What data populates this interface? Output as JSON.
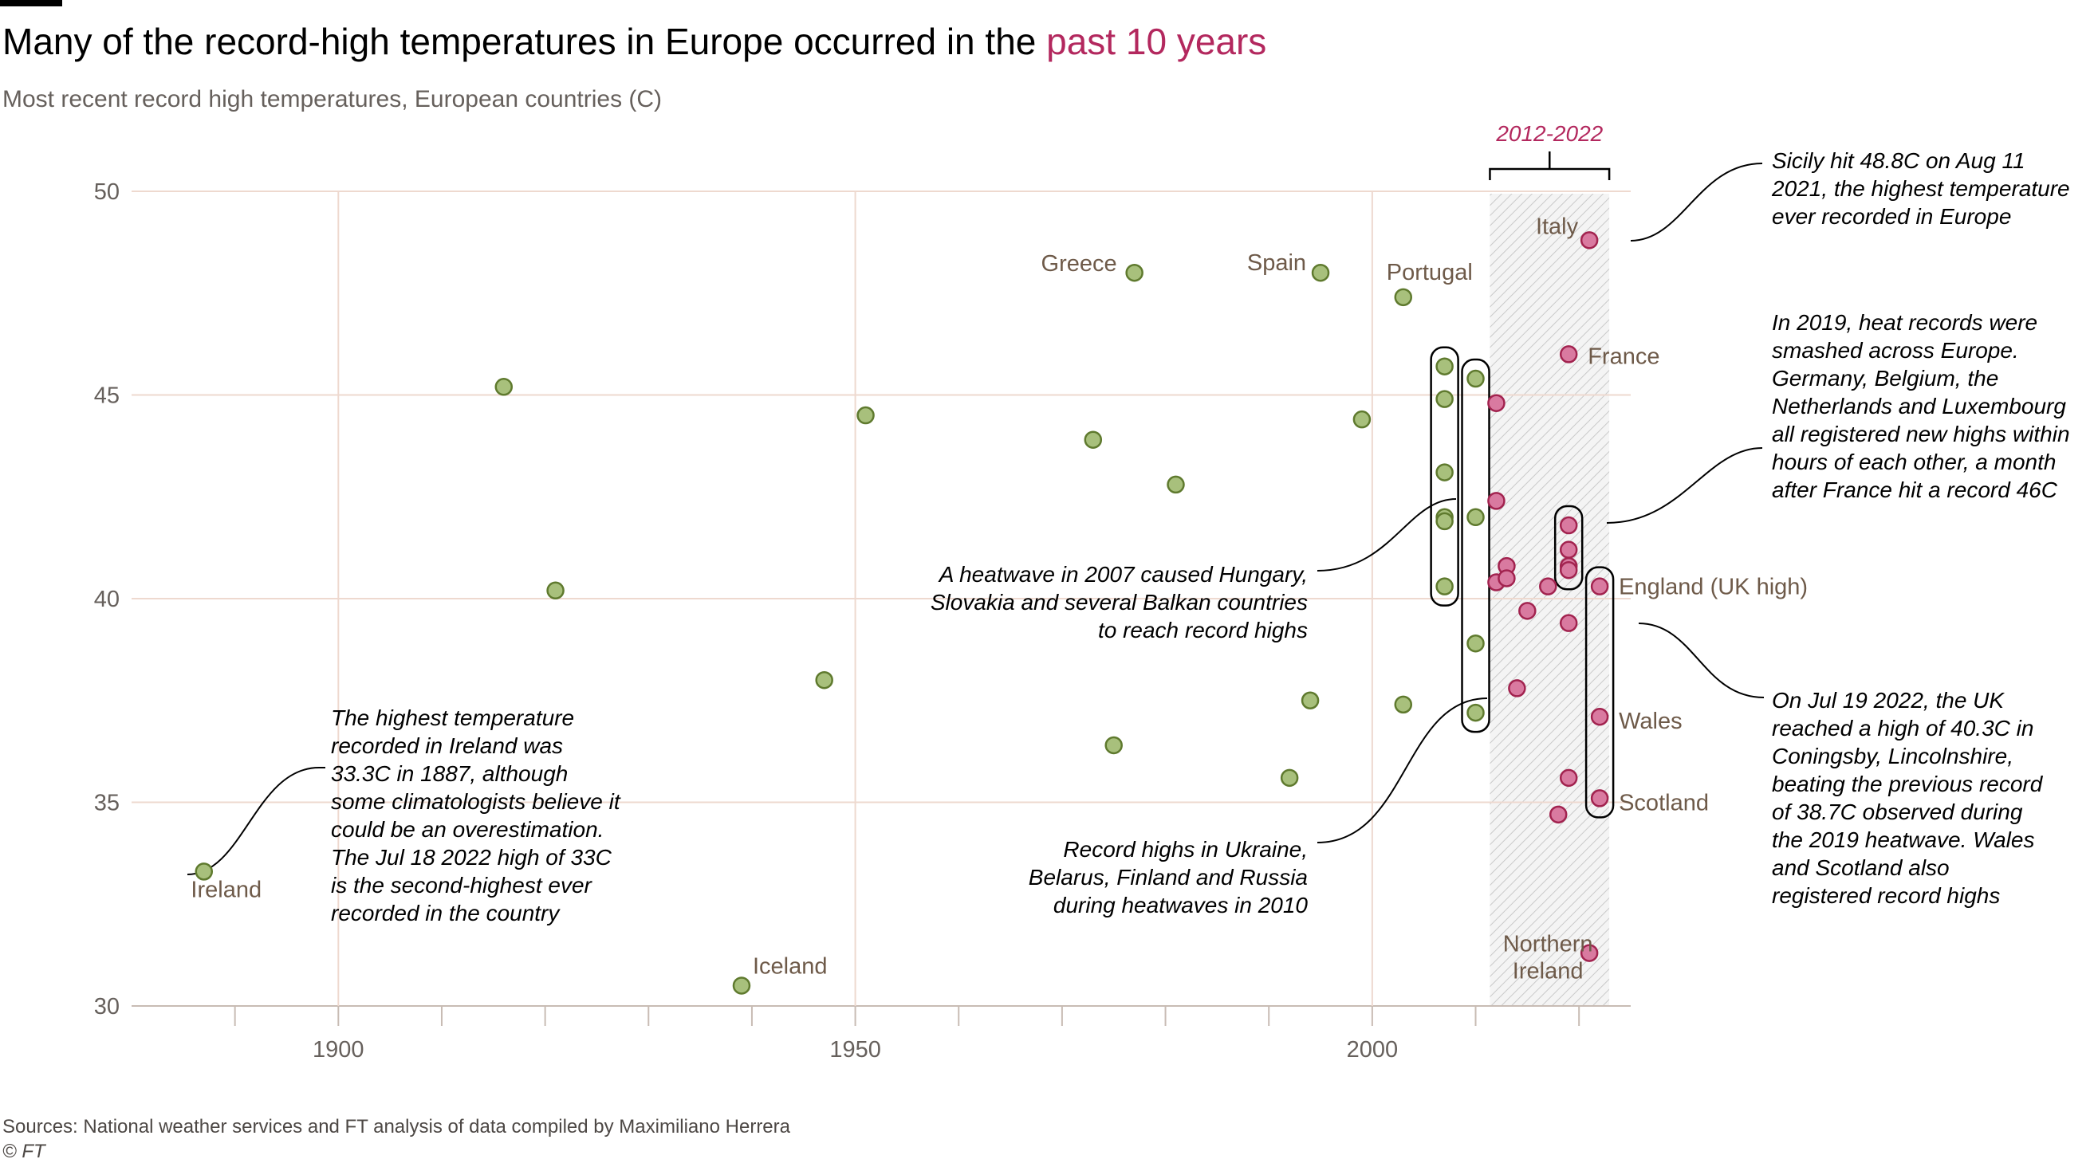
{
  "title": {
    "main": "Many of the record-high temperatures in Europe occurred in the ",
    "highlight": "past 10 years"
  },
  "subtitle": "Most recent record high temperatures, European countries (C)",
  "footer": {
    "sources": "Sources: National weather services and FT analysis of data compiled by Maximiliano Herrera",
    "credit": "© FT"
  },
  "colors": {
    "older_fill": "#a8c07c",
    "older_stroke": "#5f7a2e",
    "recent_fill": "#d97aa0",
    "recent_stroke": "#a2234f",
    "highlight": "#b3285e",
    "grid": "#eed9cf"
  },
  "chart_data": {
    "type": "scatter",
    "xlim": [
      1880,
      2025
    ],
    "ylim": [
      30,
      50
    ],
    "x_ticks": [
      "1900",
      "1950",
      "2000"
    ],
    "y_ticks": [
      "30",
      "35",
      "40",
      "45",
      "50"
    ],
    "highlight_range": {
      "label": "2012-2022",
      "x": [
        2012,
        2022
      ]
    },
    "points": [
      {
        "x": 1887,
        "y": 33.3,
        "label": "Ireland",
        "recent": false
      },
      {
        "x": 1916,
        "y": 45.2,
        "recent": false
      },
      {
        "x": 1921,
        "y": 40.2,
        "recent": false
      },
      {
        "x": 1939,
        "y": 30.5,
        "label": "Iceland",
        "recent": false
      },
      {
        "x": 1947,
        "y": 38.0,
        "recent": false
      },
      {
        "x": 1951,
        "y": 44.5,
        "recent": false
      },
      {
        "x": 1973,
        "y": 43.9,
        "recent": false
      },
      {
        "x": 1975,
        "y": 36.4,
        "recent": false
      },
      {
        "x": 1977,
        "y": 48.0,
        "label": "Greece",
        "recent": false
      },
      {
        "x": 1981,
        "y": 42.8,
        "recent": false
      },
      {
        "x": 1992,
        "y": 35.6,
        "recent": false
      },
      {
        "x": 1994,
        "y": 37.5,
        "recent": false
      },
      {
        "x": 1995,
        "y": 48.0,
        "label": "Spain",
        "recent": false
      },
      {
        "x": 1999,
        "y": 44.4,
        "recent": false
      },
      {
        "x": 2003,
        "y": 47.4,
        "label": "Portugal",
        "recent": false
      },
      {
        "x": 2003,
        "y": 37.4,
        "recent": false
      },
      {
        "x": 2007,
        "y": 45.7,
        "recent": false
      },
      {
        "x": 2007,
        "y": 44.9,
        "recent": false
      },
      {
        "x": 2007,
        "y": 43.1,
        "recent": false
      },
      {
        "x": 2007,
        "y": 42.0,
        "recent": false
      },
      {
        "x": 2007,
        "y": 41.9,
        "recent": false
      },
      {
        "x": 2007,
        "y": 40.3,
        "recent": false
      },
      {
        "x": 2010,
        "y": 45.4,
        "recent": false
      },
      {
        "x": 2010,
        "y": 42.0,
        "recent": false
      },
      {
        "x": 2010,
        "y": 38.9,
        "recent": false
      },
      {
        "x": 2010,
        "y": 37.2,
        "recent": false
      },
      {
        "x": 2012,
        "y": 44.8,
        "recent": true
      },
      {
        "x": 2012,
        "y": 42.4,
        "recent": true
      },
      {
        "x": 2012,
        "y": 40.4,
        "recent": true
      },
      {
        "x": 2013,
        "y": 40.8,
        "recent": true
      },
      {
        "x": 2013,
        "y": 40.5,
        "recent": true
      },
      {
        "x": 2014,
        "y": 37.8,
        "recent": true
      },
      {
        "x": 2015,
        "y": 39.7,
        "recent": true
      },
      {
        "x": 2017,
        "y": 40.3,
        "recent": true
      },
      {
        "x": 2018,
        "y": 34.7,
        "recent": true
      },
      {
        "x": 2019,
        "y": 46.0,
        "label": "France",
        "recent": true
      },
      {
        "x": 2019,
        "y": 41.8,
        "recent": true
      },
      {
        "x": 2019,
        "y": 41.2,
        "recent": true
      },
      {
        "x": 2019,
        "y": 40.8,
        "recent": true
      },
      {
        "x": 2019,
        "y": 40.7,
        "recent": true
      },
      {
        "x": 2019,
        "y": 39.4,
        "recent": true
      },
      {
        "x": 2019,
        "y": 35.6,
        "recent": true
      },
      {
        "x": 2021,
        "y": 48.8,
        "label": "Italy",
        "recent": true
      },
      {
        "x": 2021,
        "y": 31.3,
        "label": "Northern Ireland",
        "recent": true
      },
      {
        "x": 2022,
        "y": 40.3,
        "label": "England (UK high)",
        "recent": true
      },
      {
        "x": 2022,
        "y": 37.1,
        "label": "Wales",
        "recent": true
      },
      {
        "x": 2022,
        "y": 35.1,
        "label": "Scotland",
        "recent": true
      }
    ],
    "annotations": [
      {
        "id": "ireland",
        "lines": [
          "The highest temperature",
          "recorded in Ireland was",
          "33.3C in 1887, although",
          "some climatologists believe it",
          "could be an overestimation.",
          "The Jul 18 2022 high of 33C",
          "is the second-highest ever",
          "recorded in the country"
        ]
      },
      {
        "id": "balkans",
        "lines": [
          "A heatwave in 2007 caused Hungary,",
          "Slovakia and several Balkan countries",
          "to reach record highs"
        ]
      },
      {
        "id": "ukraine",
        "lines": [
          "Record highs in Ukraine,",
          "Belarus, Finland and Russia",
          "during heatwaves in 2010"
        ]
      },
      {
        "id": "sicily",
        "lines": [
          "Sicily hit 48.8C on Aug 11",
          "2021, the highest temperature",
          "ever recorded in Europe"
        ]
      },
      {
        "id": "heat2019",
        "lines": [
          "In 2019, heat records were",
          "smashed across Europe.",
          "Germany, Belgium, the",
          "Netherlands and Luxembourg",
          "all registered new highs within",
          "hours of each other, a month",
          "after France hit a record 46C"
        ]
      },
      {
        "id": "uk2022",
        "lines": [
          "On Jul 19 2022, the UK",
          "reached a high of 40.3C in",
          "Coningsby, Lincolnshire,",
          "beating the previous record",
          "of 38.7C observed during",
          "the 2019 heatwave. Wales",
          "and Scotland also",
          "registered record highs"
        ]
      }
    ]
  }
}
